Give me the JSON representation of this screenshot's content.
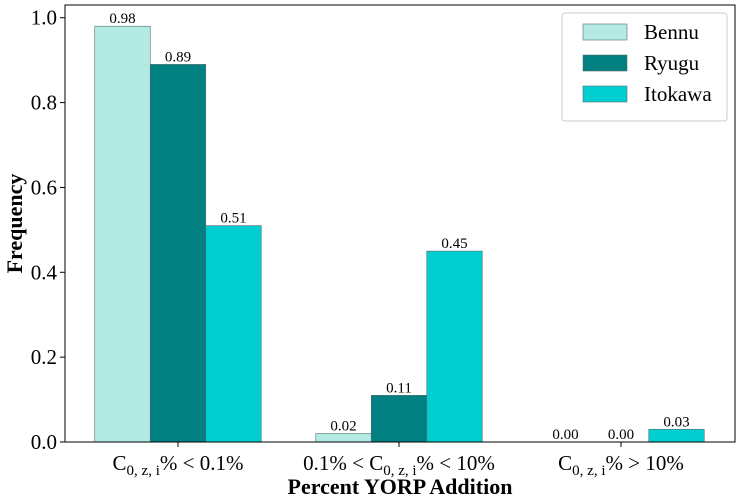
{
  "chart_data": {
    "type": "bar",
    "title": "",
    "xlabel": "Percent YORP Addition",
    "ylabel": "Frequency",
    "ylim": [
      0,
      1.03
    ],
    "yticks": [
      "0.0",
      "0.2",
      "0.4",
      "0.6",
      "0.8",
      "1.0"
    ],
    "ytick_values": [
      0,
      0.2,
      0.4,
      0.6,
      0.8,
      1.0
    ],
    "categories": [
      {
        "pre": "C",
        "sub": "0, z, i",
        "post": "% < 0.1%"
      },
      {
        "pre": "0.1% < C",
        "sub": "0, z, i",
        "post": "% < 10%"
      },
      {
        "pre": "C",
        "sub": "0, z, i",
        "post": "% > 10%"
      }
    ],
    "series": [
      {
        "name": "Bennu",
        "color": "#b3ebe4",
        "values": [
          0.98,
          0.02,
          0.0
        ],
        "labels": [
          "0.98",
          "0.02",
          "0.00"
        ]
      },
      {
        "name": "Ryugu",
        "color": "#008080",
        "values": [
          0.89,
          0.11,
          0.0
        ],
        "labels": [
          "0.89",
          "0.11",
          "0.00"
        ]
      },
      {
        "name": "Itokawa",
        "color": "#00ced1",
        "values": [
          0.51,
          0.45,
          0.03
        ],
        "labels": [
          "0.51",
          "0.45",
          "0.03"
        ]
      }
    ],
    "legend_position": "top-right",
    "grid": false
  }
}
